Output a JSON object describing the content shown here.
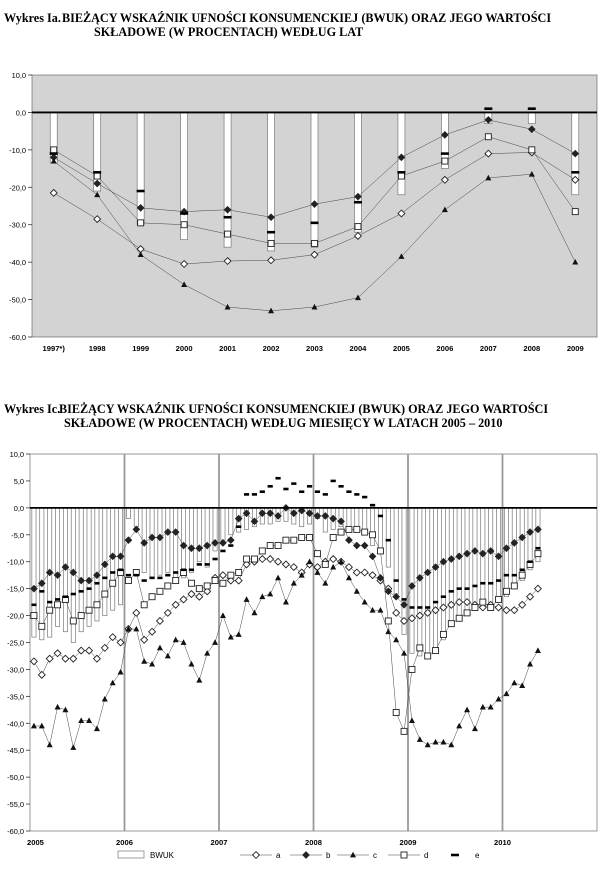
{
  "charts": [
    {
      "prefix": "Wykres Ia.",
      "title_line1": "BIEŻĄCY WSKAŹNIK UFNOŚCI KONSUMENCKIEJ (BWUK) ORAZ JEGO WARTOŚCI",
      "title_line2": "SKŁADOWE (W PROCENTACH) WEDŁUG LAT"
    },
    {
      "prefix": "Wykres Ic.",
      "title_line1": "BIEŻĄCY WSKAŹNIK UFNOŚCI KONSUMENCKIEJ (BWUK) ORAZ JEGO WARTOŚCI",
      "title_line2": "SKŁADOWE (W PROCENTACH) WEDŁUG MIESIĘCY W LATACH 2005 – 2010"
    }
  ],
  "legend": {
    "bwuk": "BWUK",
    "a": "a",
    "b": "b",
    "c": "c",
    "d": "d",
    "e": "e"
  },
  "chart_data": [
    {
      "type": "bar",
      "title": "Wykres Ia. BIEŻĄCY WSKAŹNIK UFNOŚCI KONSUMENCKIEJ (BWUK) ORAZ JEGO WARTOŚCI SKŁADOWE (W PROCENTACH) WEDŁUG LAT",
      "xlabel": "",
      "ylabel": "",
      "ylim": [
        -60,
        10
      ],
      "yticks": [
        10,
        0,
        -10,
        -20,
        -30,
        -40,
        -50,
        -60
      ],
      "ytick_labels": [
        "10,0",
        "0,0",
        "-10,0",
        "-20,0",
        "-30,0",
        "-40,0",
        "-50,0",
        "-60,0"
      ],
      "categories": [
        "1997*)",
        "1998",
        "1999",
        "2000",
        "2001",
        "2002",
        "2003",
        "2004",
        "2005",
        "2006",
        "2007",
        "2008",
        "2009"
      ],
      "series": [
        {
          "name": "BWUK",
          "kind": "bar",
          "values": [
            -13.5,
            -21,
            -30,
            -34,
            -36,
            -37,
            -36,
            -32,
            -22,
            -15,
            -3,
            -3,
            -22
          ]
        },
        {
          "name": "a",
          "kind": "line-diamond-open",
          "values": [
            -21.5,
            -28.5,
            -36.5,
            -40.5,
            -39.7,
            -39.5,
            -38,
            -33,
            -27,
            -18,
            -11,
            -10.7,
            -18
          ]
        },
        {
          "name": "b",
          "kind": "line-diamond-filled",
          "values": [
            -12,
            -19,
            -25.5,
            -26.5,
            -26,
            -28,
            -24.5,
            -22.5,
            -12,
            -6,
            -2,
            -4.5,
            -11
          ]
        },
        {
          "name": "c",
          "kind": "line-triangle",
          "values": [
            -13,
            -22,
            -38,
            -46,
            -52,
            -53,
            -52,
            -49.5,
            -38.5,
            -26,
            -17.5,
            -16.5,
            -40
          ]
        },
        {
          "name": "d",
          "kind": "line-square-open",
          "values": [
            -10,
            -17,
            -29.5,
            -30,
            -32.5,
            -35,
            -35,
            -30.5,
            -17,
            -13,
            -6.5,
            -10,
            -26.5
          ]
        },
        {
          "name": "e",
          "kind": "dash",
          "values": [
            -11,
            -16,
            -21,
            -27,
            -28,
            -32,
            -29.5,
            -24,
            -16,
            -11,
            1,
            1,
            -16
          ]
        }
      ],
      "legend_position": "none",
      "grid": false
    },
    {
      "type": "bar",
      "title": "Wykres Ic. BIEŻĄCY WSKAŹNIK UFNOŚCI KONSUMENCKIEJ (BWUK) ORAZ JEGO WARTOŚCI SKŁADOWE (W PROCENTACH) WEDŁUG MIESIĘCY W LATACH 2005 – 2010",
      "xlabel": "",
      "ylabel": "",
      "ylim": [
        -60,
        10
      ],
      "yticks": [
        10,
        5,
        0,
        -5,
        -10,
        -15,
        -20,
        -25,
        -30,
        -35,
        -40,
        -45,
        -50,
        -55,
        -60
      ],
      "ytick_labels": [
        "10,0",
        "5,0",
        "0,0",
        "-5,0",
        "-10,0",
        "-15,0",
        "-20,0",
        "-25,0",
        "-30,0",
        "-35,0",
        "-40,0",
        "-45,0",
        "-50,0",
        "-55,0",
        "-60,0"
      ],
      "x_year_labels": [
        "2005",
        "2006",
        "2007",
        "2008",
        "2009",
        "2010"
      ],
      "months_per_year": 12,
      "points": 65,
      "series": [
        {
          "name": "BWUK",
          "kind": "bar",
          "values": [
            -24,
            -24.5,
            -24,
            -22,
            -23,
            -25,
            -23,
            -22,
            -21,
            -20,
            -19,
            -18,
            -2,
            -3.5,
            -12,
            -13,
            -12.5,
            -12,
            -13.5,
            -13,
            -12,
            -10,
            -11,
            -8,
            -6,
            -5,
            -4.5,
            -4,
            -3.5,
            -3,
            -3,
            -2.5,
            -2.5,
            -3,
            -3.5,
            -3,
            -2,
            -4.5,
            -4,
            -3.5,
            -4,
            -4.5,
            -5,
            -7,
            -8,
            -11,
            -16,
            -23.5,
            -27,
            -27.5,
            -28,
            -26.5,
            -24.5,
            -22,
            -20,
            -19,
            -18.5,
            -18,
            -18,
            -17.5,
            -16.5,
            -15,
            -13.5,
            -11.5,
            -10
          ]
        },
        {
          "name": "a",
          "kind": "line-diamond-open",
          "values": [
            -28.5,
            -31,
            -28,
            -27,
            -28,
            -28,
            -26.5,
            -26.5,
            -28,
            -26,
            -24,
            -25,
            -22.5,
            -19.5,
            -24.5,
            -23,
            -21,
            -19.5,
            -18,
            -17,
            -16,
            -16.5,
            -15.5,
            -13,
            -12.5,
            -13.5,
            -13.5,
            -10.5,
            -10,
            -9.5,
            -9.5,
            -10,
            -10.5,
            -11,
            -12,
            -10.5,
            -11,
            -10,
            -9.5,
            -10,
            -11,
            -12,
            -12,
            -12.5,
            -13.5,
            -15,
            -19.5,
            -21,
            -20.5,
            -20,
            -19.5,
            -19,
            -18.5,
            -18,
            -17.5,
            -17.5,
            -18,
            -18.5,
            -18,
            -18.5,
            -19,
            -19,
            -18,
            -16.5,
            -15
          ]
        },
        {
          "name": "b",
          "kind": "line-diamond-filled",
          "values": [
            -15,
            -14,
            -12,
            -12.5,
            -11,
            -12,
            -13.5,
            -13.5,
            -12.5,
            -10.5,
            -9,
            -9,
            -6,
            -4,
            -6.5,
            -5.5,
            -5.5,
            -4.5,
            -4.5,
            -7,
            -7.5,
            -7.5,
            -7,
            -6.5,
            -6.5,
            -6,
            -2,
            -1,
            -2.5,
            -1,
            -1,
            -1.5,
            0,
            -1,
            -0.5,
            -1,
            -1.5,
            -1.5,
            -2,
            -2.5,
            -6,
            -7,
            -7,
            -9,
            -13,
            -15.5,
            -16.5,
            -18,
            -14.5,
            -13,
            -12,
            -11,
            -10,
            -9.5,
            -9,
            -8.5,
            -8,
            -8.5,
            -8,
            -9,
            -7.5,
            -6.5,
            -5.5,
            -4.5,
            -4
          ]
        },
        {
          "name": "c",
          "kind": "line-triangle",
          "values": [
            -40.5,
            -40.5,
            -44,
            -37,
            -37.5,
            -44.5,
            -39.5,
            -39.5,
            -41,
            -35.5,
            -32.5,
            -30.5,
            -22.5,
            -22.5,
            -28.5,
            -29,
            -26,
            -27.5,
            -24.5,
            -25,
            -29,
            -32,
            -27,
            -25,
            -20,
            -24,
            -23.5,
            -17,
            -19.5,
            -16.5,
            -16,
            -13,
            -17.5,
            -14,
            -12.5,
            -10,
            -12,
            -14,
            -11,
            -10,
            -13,
            -15.5,
            -17.5,
            -19,
            -19,
            -23,
            -24.5,
            -27,
            -39.5,
            -43,
            -44,
            -43.5,
            -43.5,
            -44,
            -40.5,
            -37.5,
            -41,
            -37,
            -37,
            -35.5,
            -34.5,
            -32.5,
            -33,
            -29,
            -26.5
          ]
        },
        {
          "name": "d",
          "kind": "line-square-open",
          "values": [
            -20,
            -22,
            -19,
            -18,
            -17,
            -21,
            -20,
            -19,
            -18,
            -16,
            -14,
            -12,
            -13.5,
            -12,
            -18,
            -16.5,
            -15.5,
            -14.5,
            -13.5,
            -12,
            -14,
            -15,
            -14.5,
            -13.5,
            -14,
            -12.5,
            -12,
            -9.5,
            -9.5,
            -8,
            -7,
            -7,
            -6,
            -6,
            -5.5,
            -5.5,
            -8.5,
            -10.5,
            -5.5,
            -4.5,
            -4,
            -4,
            -4.5,
            -5,
            -8,
            -21,
            -38,
            -41.5,
            -30,
            -26,
            -27.5,
            -26.5,
            -23.5,
            -21.5,
            -20.5,
            -19.5,
            -18.5,
            -17.5,
            -18.5,
            -17,
            -15.5,
            -14.5,
            -12.5,
            -10.5,
            -8.5
          ]
        },
        {
          "name": "e",
          "kind": "dash",
          "values": [
            -18,
            -15.5,
            -17.5,
            -17,
            -16.5,
            -16,
            -15.5,
            -15,
            -14,
            -13,
            -12,
            -11.5,
            -12.5,
            -12.5,
            -13.5,
            -13,
            -13,
            -12.5,
            -12,
            -11.5,
            -11.5,
            -10.5,
            -10.5,
            -9.5,
            -8,
            -7,
            -3.5,
            2.5,
            2.5,
            3,
            4,
            5.5,
            3.5,
            4.5,
            3,
            4,
            3,
            2.5,
            5,
            4,
            3,
            2.5,
            2,
            0.5,
            -1.5,
            -6,
            -13.5,
            -17,
            -18.5,
            -18.5,
            -18.5,
            -17.5,
            -16.5,
            -15.5,
            -15,
            -15,
            -14.5,
            -14,
            -14,
            -13.5,
            -12.5,
            -12.5,
            -11.5,
            -10,
            -7.5
          ]
        }
      ],
      "legend_position": "bottom",
      "grid": false
    }
  ]
}
